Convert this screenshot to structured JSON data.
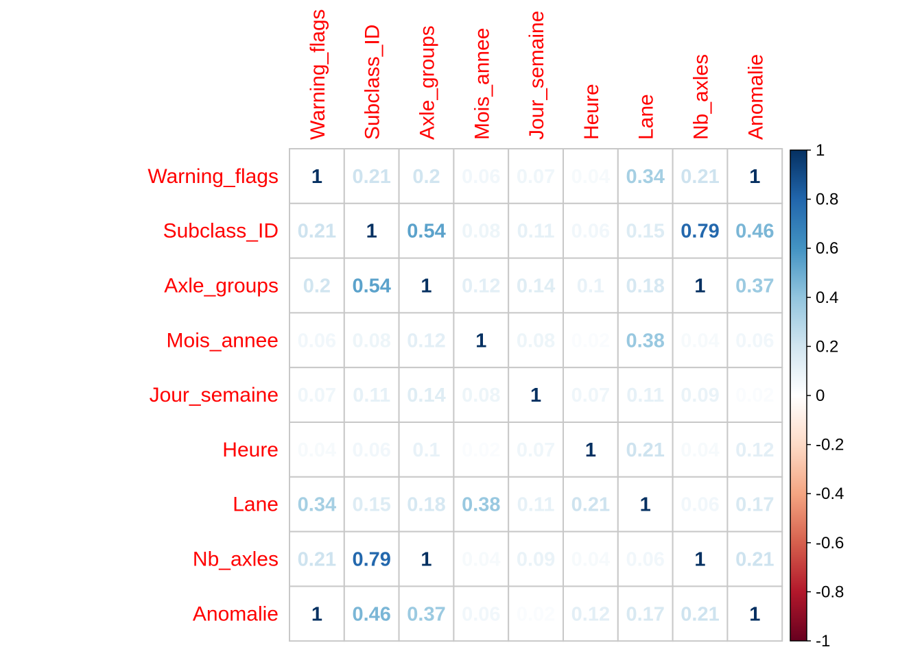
{
  "chart_data": {
    "type": "heatmap",
    "variables": [
      "Warning_flags",
      "Subclass_ID",
      "Axle_groups",
      "Mois_annee",
      "Jour_semaine",
      "Heure",
      "Lane",
      "Nb_axles",
      "Anomalie"
    ],
    "matrix": [
      [
        1,
        0.21,
        0.2,
        0.06,
        0.07,
        0.04,
        0.34,
        0.21,
        1
      ],
      [
        0.21,
        1,
        0.54,
        0.08,
        0.11,
        0.06,
        0.15,
        0.79,
        0.46
      ],
      [
        0.2,
        0.54,
        1,
        0.12,
        0.14,
        0.1,
        0.18,
        1,
        0.37
      ],
      [
        0.06,
        0.08,
        0.12,
        1,
        0.08,
        0.02,
        0.38,
        0.04,
        0.06
      ],
      [
        0.07,
        0.11,
        0.14,
        0.08,
        1,
        0.07,
        0.11,
        0.09,
        0.02
      ],
      [
        0.04,
        0.06,
        0.1,
        0.02,
        0.07,
        1,
        0.21,
        0.04,
        0.12
      ],
      [
        0.34,
        0.15,
        0.18,
        0.38,
        0.11,
        0.21,
        1,
        0.06,
        0.17
      ],
      [
        0.21,
        0.79,
        1,
        0.04,
        0.09,
        0.04,
        0.06,
        1,
        0.21
      ],
      [
        1,
        0.46,
        0.37,
        0.06,
        0.02,
        0.12,
        0.17,
        0.21,
        1
      ]
    ],
    "colorbar": {
      "range": [
        -1,
        1
      ],
      "ticks": [
        "1",
        "0.8",
        "0.6",
        "0.4",
        "0.2",
        "0",
        "-0.2",
        "-0.4",
        "-0.6",
        "-0.8",
        "-1"
      ],
      "colors": [
        "#67001F",
        "#B2182B",
        "#D6604D",
        "#F4A582",
        "#FDDBC7",
        "#FFFFFF",
        "#D1E5F0",
        "#92C5DE",
        "#4393C3",
        "#2166AC",
        "#053061"
      ]
    },
    "label_color": "#FF0000",
    "grid_color": "#C8C8C8"
  }
}
